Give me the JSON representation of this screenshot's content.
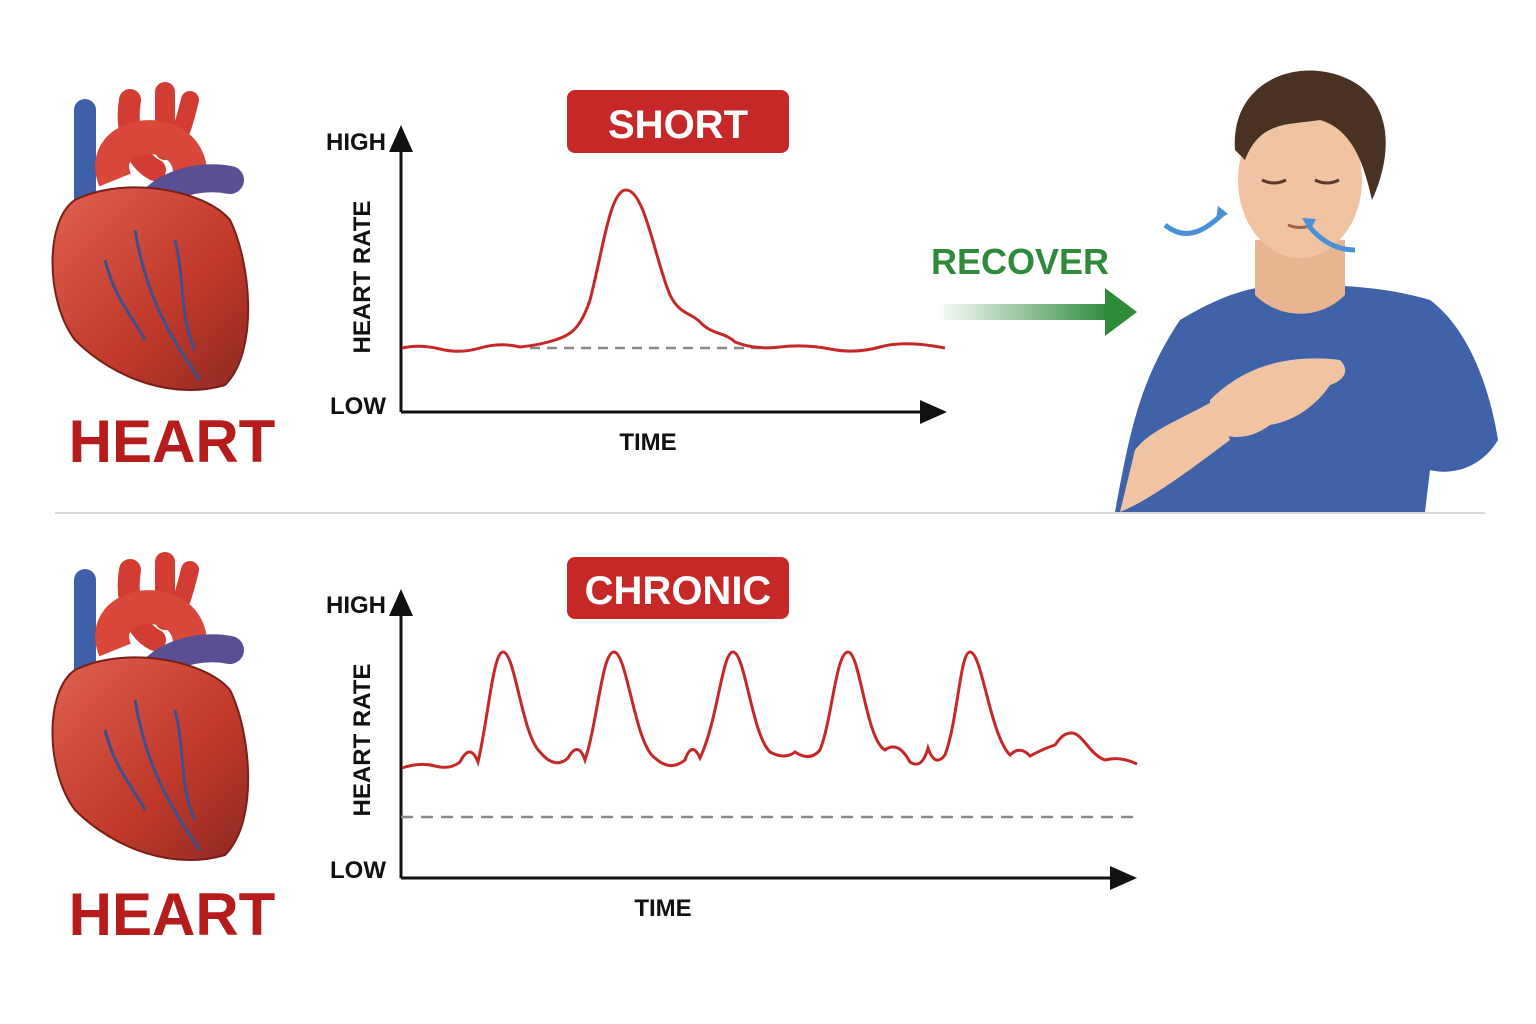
{
  "panels": [
    {
      "heart_label": "HEART",
      "badge": "SHORT",
      "y_high": "HIGH",
      "y_low": "LOW",
      "y_label": "HEART RATE",
      "x_label": "TIME",
      "action": "RECOVER"
    },
    {
      "heart_label": "HEART",
      "badge": "CHRONIC",
      "y_high": "HIGH",
      "y_low": "LOW",
      "y_label": "HEART RATE",
      "x_label": "TIME"
    }
  ]
}
